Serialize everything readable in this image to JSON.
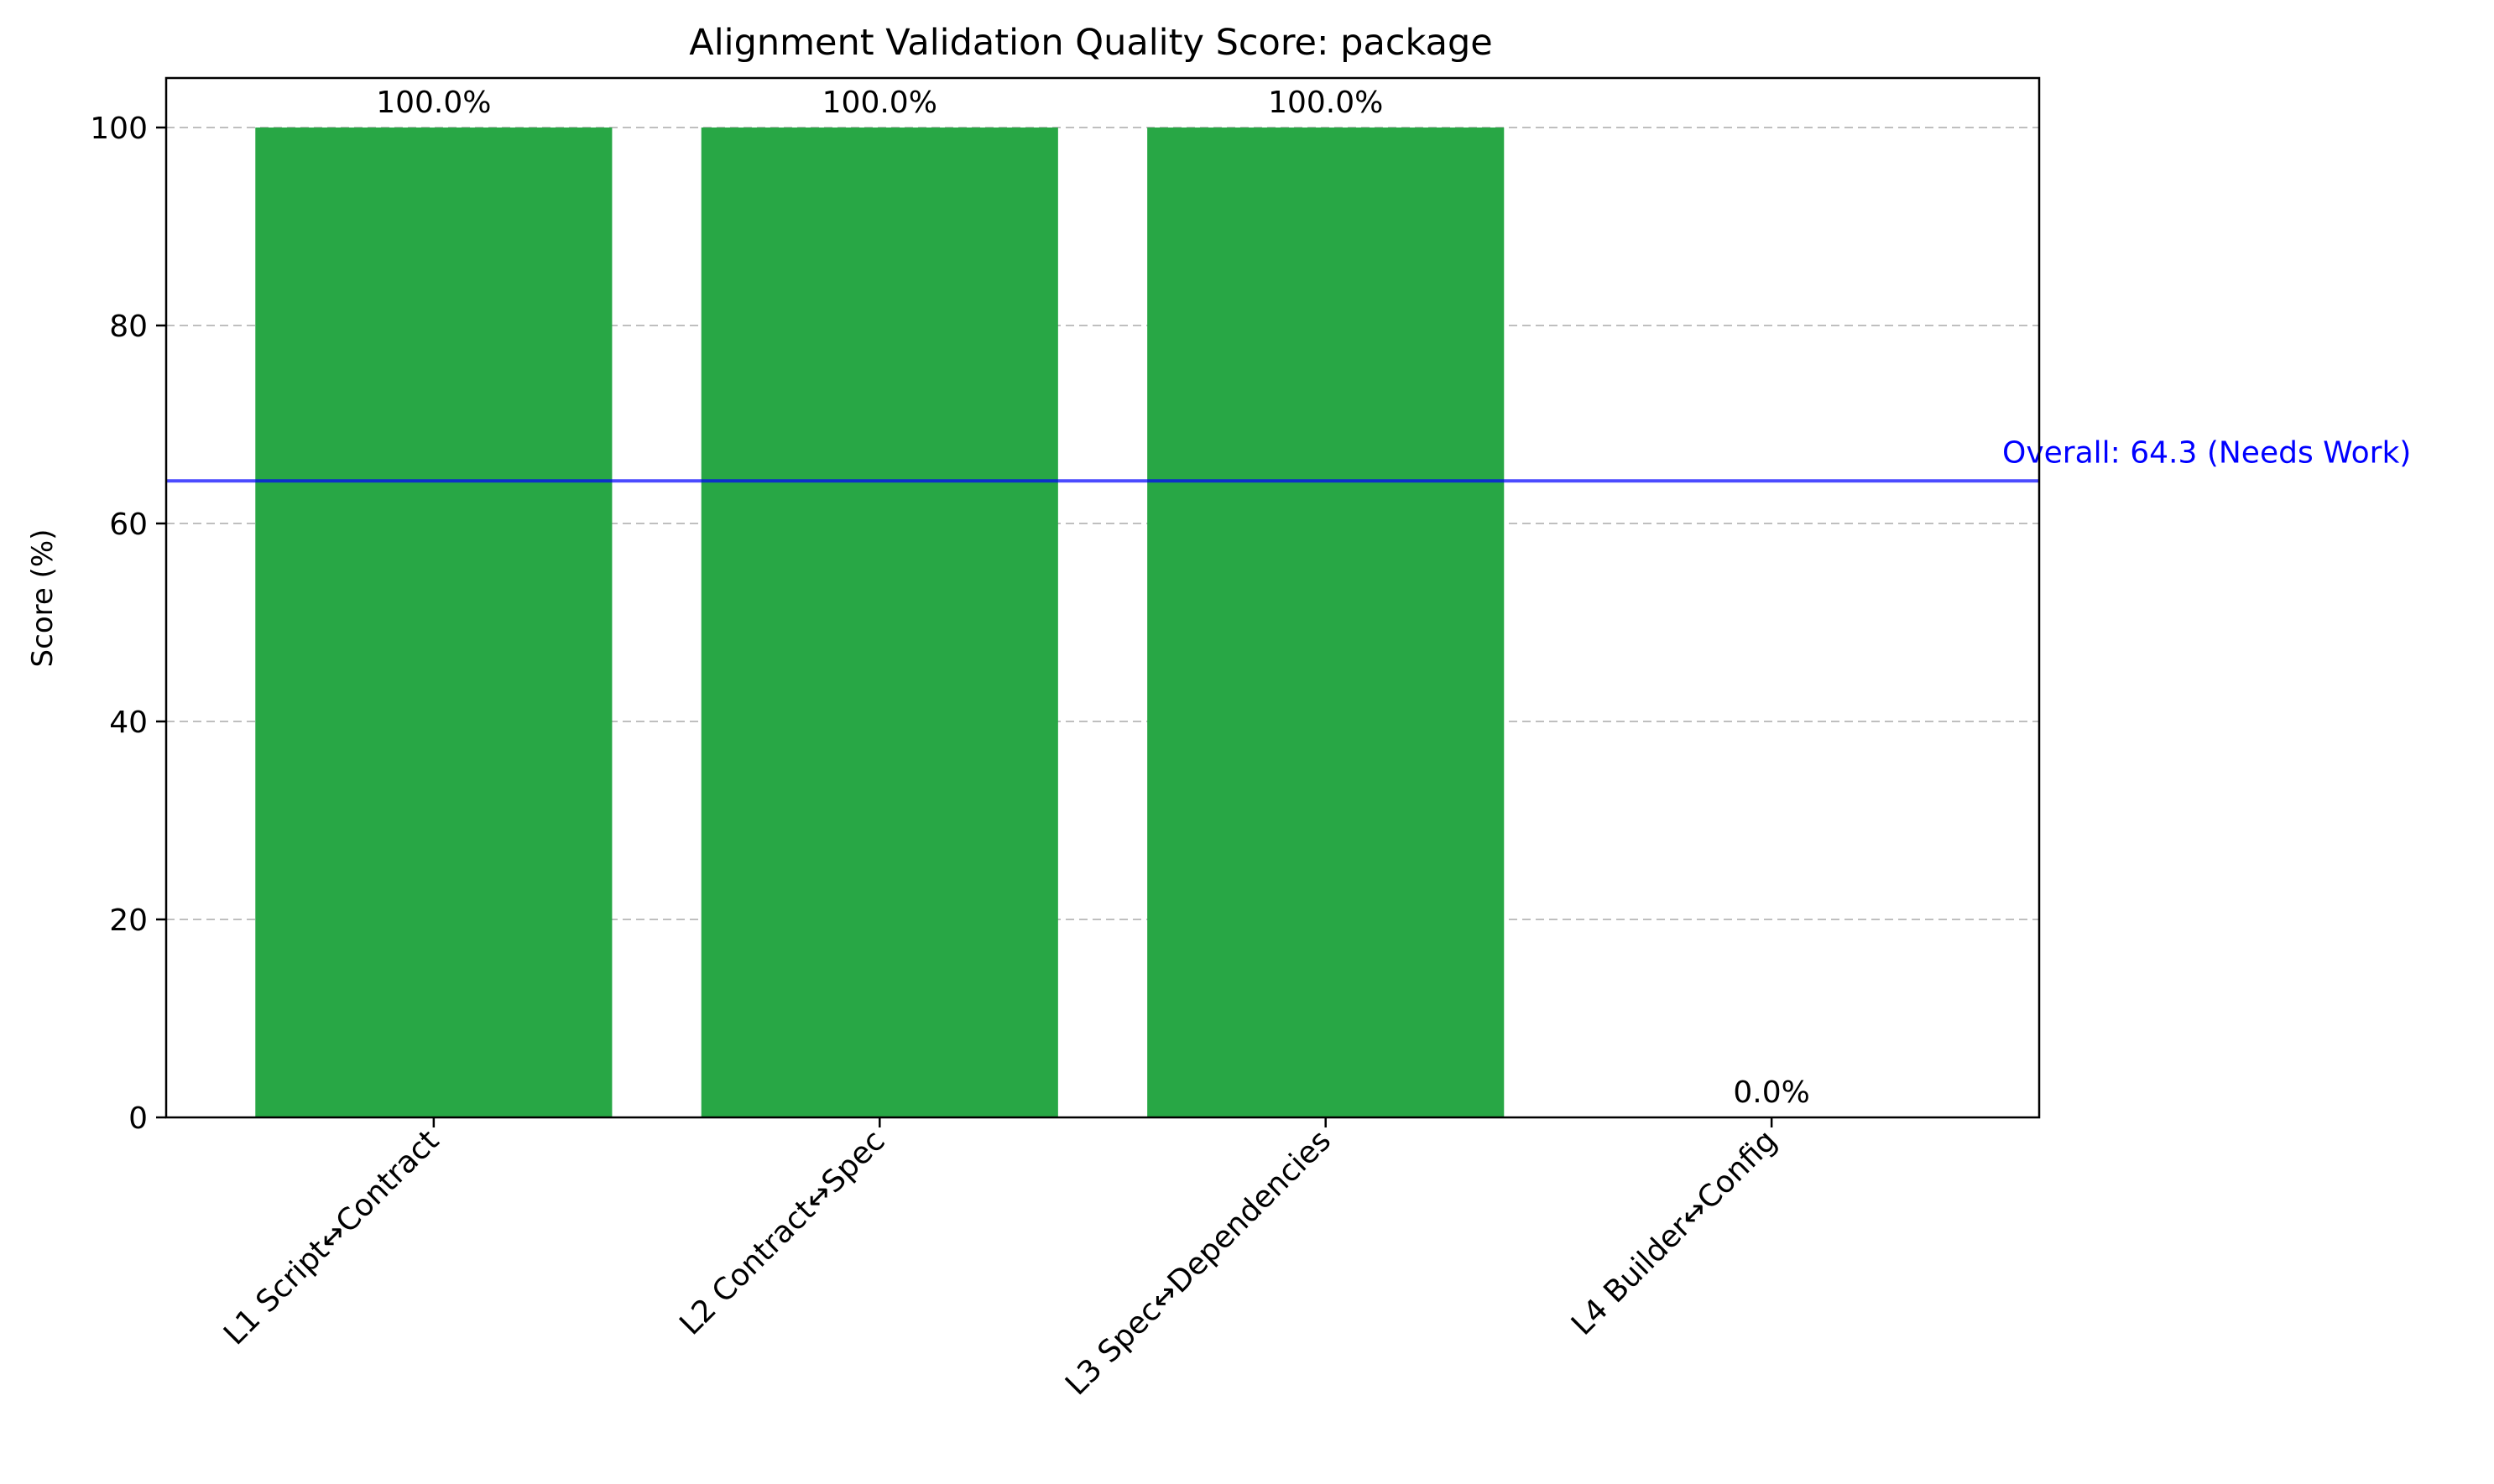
{
  "chart_data": {
    "type": "bar",
    "title": "Alignment Validation Quality Score: package",
    "xlabel": "",
    "ylabel": "Score (%)",
    "ylim": [
      0,
      105
    ],
    "yticks": [
      0,
      20,
      40,
      60,
      80,
      100
    ],
    "categories": [
      "L1 Script↔Contract",
      "L2 Contract↔Spec",
      "L3 Spec↔Dependencies",
      "L4 Builder↔Config"
    ],
    "values": [
      100.0,
      100.0,
      100.0,
      0.0
    ],
    "data_labels": [
      "100.0%",
      "100.0%",
      "100.0%",
      "0.0%"
    ],
    "grid": "y, dashed",
    "bar_color": "#28a745",
    "reference_line": {
      "value": 64.3,
      "label": "Overall: 64.3 (Needs Work)",
      "color": "#0000ff"
    }
  }
}
